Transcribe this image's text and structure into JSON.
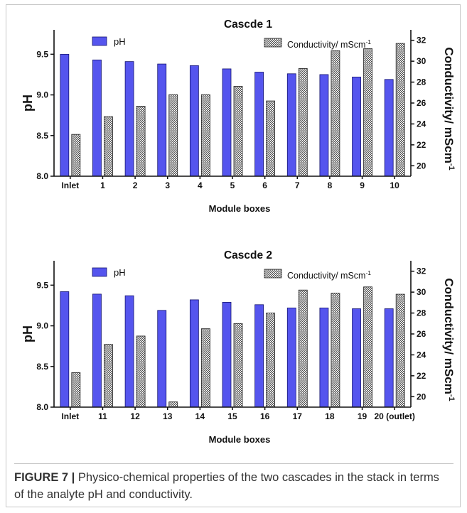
{
  "caption": {
    "label": "FIGURE 7 |",
    "text": " Physico-chemical properties of the two cascades in the stack in terms of the analyte pH and conductivity."
  },
  "colors": {
    "ph_bar": "#5555ee",
    "ph_stroke": "#141470",
    "cond_fill": "#b8b8b8",
    "cond_stroke": "#222222"
  },
  "chart_data": [
    {
      "type": "bar",
      "title": "Cascde 1",
      "xlabel": "Module boxes",
      "ylabel": "pH",
      "y2label": "Conductivity/ mScm",
      "y2label_sup": "-1",
      "categories": [
        "Inlet",
        "1",
        "2",
        "3",
        "4",
        "5",
        "6",
        "7",
        "8",
        "9",
        "10"
      ],
      "ylim": [
        8.0,
        9.8
      ],
      "yticks": [
        "8.0",
        "8.5",
        "9.0",
        "9.5"
      ],
      "y2lim": [
        19,
        33
      ],
      "y2ticks": [
        "20",
        "22",
        "24",
        "26",
        "28",
        "30",
        "32"
      ],
      "legend": {
        "ph": "pH",
        "cond": "Conductivity/ mScm",
        "cond_sup": "-1"
      },
      "series": [
        {
          "name": "pH",
          "axis": "left",
          "values": [
            9.5,
            9.43,
            9.41,
            9.38,
            9.36,
            9.32,
            9.28,
            9.26,
            9.25,
            9.22,
            9.19
          ]
        },
        {
          "name": "Conductivity/ mScm-1",
          "axis": "right",
          "values": [
            23.0,
            24.7,
            25.7,
            26.8,
            26.8,
            27.6,
            26.2,
            29.3,
            31.0,
            31.2,
            31.7
          ]
        }
      ]
    },
    {
      "type": "bar",
      "title": "Cascde 2",
      "xlabel": "Module boxes",
      "ylabel": "pH",
      "y2label": "Conductivity/ mScm",
      "y2label_sup": "-1",
      "categories": [
        "Inlet",
        "11",
        "12",
        "13",
        "14",
        "15",
        "16",
        "17",
        "18",
        "19",
        "20 (outlet)"
      ],
      "ylim": [
        8.0,
        9.8
      ],
      "yticks": [
        "8.0",
        "8.5",
        "9.0",
        "9.5"
      ],
      "y2lim": [
        19,
        33
      ],
      "y2ticks": [
        "20",
        "22",
        "24",
        "26",
        "28",
        "30",
        "32"
      ],
      "legend": {
        "ph": "pH",
        "cond": "Conductivity/ mScm",
        "cond_sup": "-1"
      },
      "series": [
        {
          "name": "pH",
          "axis": "left",
          "values": [
            9.42,
            9.39,
            9.37,
            9.19,
            9.32,
            9.29,
            9.26,
            9.22,
            9.22,
            9.21,
            9.21
          ]
        },
        {
          "name": "Conductivity/ mScm-1",
          "axis": "right",
          "values": [
            22.3,
            25.0,
            25.8,
            19.5,
            26.5,
            27.0,
            28.0,
            30.2,
            29.9,
            30.5,
            29.8
          ]
        }
      ]
    }
  ]
}
